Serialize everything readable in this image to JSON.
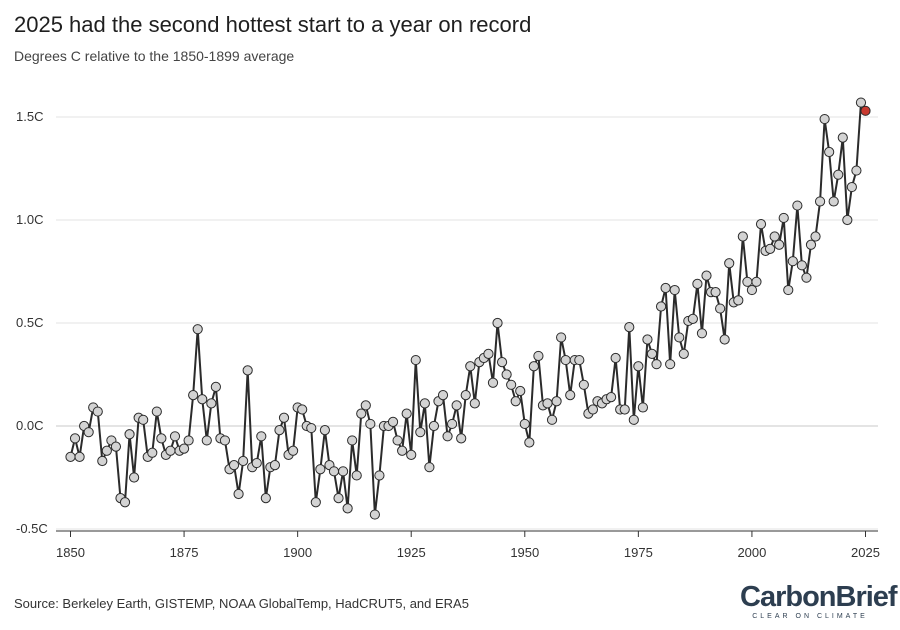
{
  "header": {
    "title": "2025 had the second hottest start to a year on record",
    "subtitle": "Degrees C relative to the 1850-1899 average"
  },
  "footer": {
    "source": "Source: Berkeley Earth, GISTEMP, NOAA GlobalTemp, HadCRUT5, and ERA5",
    "brand_name": "CarbonBrief",
    "brand_tagline": "CLEAR ON CLIMATE"
  },
  "chart_data": {
    "type": "line",
    "title": "2025 had the second hottest start to a year on record",
    "subtitle": "Degrees C relative to the 1850-1899 average",
    "xlabel": "",
    "ylabel": "",
    "xlim": [
      1850,
      2025
    ],
    "ylim": [
      -0.5,
      1.6
    ],
    "x_ticks": [
      1850,
      1875,
      1900,
      1925,
      1950,
      1975,
      2000,
      2025
    ],
    "x_tick_labels": [
      "1850",
      "1875",
      "1900",
      "1925",
      "1950",
      "1975",
      "2000",
      "2025"
    ],
    "y_ticks": [
      -0.5,
      0.0,
      0.5,
      1.0,
      1.5
    ],
    "y_tick_labels": [
      "-0.5C",
      "0.0C",
      "0.5C",
      "1.0C",
      "1.5C"
    ],
    "grid": "horizontal",
    "colors": {
      "line": "#2b2b2b",
      "marker": "#d3d3d3",
      "highlight": "#c8392f",
      "grid": "#e3e3e3"
    },
    "highlight_year": 2025,
    "x": [
      1850,
      1851,
      1852,
      1853,
      1854,
      1855,
      1856,
      1857,
      1858,
      1859,
      1860,
      1861,
      1862,
      1863,
      1864,
      1865,
      1866,
      1867,
      1868,
      1869,
      1870,
      1871,
      1872,
      1873,
      1874,
      1875,
      1876,
      1877,
      1878,
      1879,
      1880,
      1881,
      1882,
      1883,
      1884,
      1885,
      1886,
      1887,
      1888,
      1889,
      1890,
      1891,
      1892,
      1893,
      1894,
      1895,
      1896,
      1897,
      1898,
      1899,
      1900,
      1901,
      1902,
      1903,
      1904,
      1905,
      1906,
      1907,
      1908,
      1909,
      1910,
      1911,
      1912,
      1913,
      1914,
      1915,
      1916,
      1917,
      1918,
      1919,
      1920,
      1921,
      1922,
      1923,
      1924,
      1925,
      1926,
      1927,
      1928,
      1929,
      1930,
      1931,
      1932,
      1933,
      1934,
      1935,
      1936,
      1937,
      1938,
      1939,
      1940,
      1941,
      1942,
      1943,
      1944,
      1945,
      1946,
      1947,
      1948,
      1949,
      1950,
      1951,
      1952,
      1953,
      1954,
      1955,
      1956,
      1957,
      1958,
      1959,
      1960,
      1961,
      1962,
      1963,
      1964,
      1965,
      1966,
      1967,
      1968,
      1969,
      1970,
      1971,
      1972,
      1973,
      1974,
      1975,
      1976,
      1977,
      1978,
      1979,
      1980,
      1981,
      1982,
      1983,
      1984,
      1985,
      1986,
      1987,
      1988,
      1989,
      1990,
      1991,
      1992,
      1993,
      1994,
      1995,
      1996,
      1997,
      1998,
      1999,
      2000,
      2001,
      2002,
      2003,
      2004,
      2005,
      2006,
      2007,
      2008,
      2009,
      2010,
      2011,
      2012,
      2013,
      2014,
      2015,
      2016,
      2017,
      2018,
      2019,
      2020,
      2021,
      2022,
      2023,
      2024,
      2025
    ],
    "values": [
      -0.15,
      -0.06,
      -0.15,
      0.0,
      -0.03,
      0.09,
      0.07,
      -0.17,
      -0.12,
      -0.07,
      -0.1,
      -0.35,
      -0.37,
      -0.04,
      -0.25,
      0.04,
      0.03,
      -0.15,
      -0.13,
      0.07,
      -0.06,
      -0.14,
      -0.12,
      -0.05,
      -0.12,
      -0.11,
      -0.07,
      0.15,
      0.47,
      0.13,
      -0.07,
      0.11,
      0.19,
      -0.06,
      -0.07,
      -0.21,
      -0.19,
      -0.33,
      -0.17,
      0.27,
      -0.2,
      -0.18,
      -0.05,
      -0.35,
      -0.2,
      -0.19,
      -0.02,
      0.04,
      -0.14,
      -0.12,
      0.09,
      0.08,
      0.0,
      -0.01,
      -0.37,
      -0.21,
      -0.02,
      -0.19,
      -0.22,
      -0.35,
      -0.22,
      -0.4,
      -0.07,
      -0.24,
      0.06,
      0.1,
      0.01,
      -0.43,
      -0.24,
      0.0,
      0.0,
      0.02,
      -0.07,
      -0.12,
      0.06,
      -0.14,
      0.32,
      -0.03,
      0.11,
      -0.2,
      0.0,
      0.12,
      0.15,
      -0.05,
      0.01,
      0.1,
      -0.06,
      0.15,
      0.29,
      0.11,
      0.31,
      0.33,
      0.35,
      0.21,
      0.5,
      0.31,
      0.25,
      0.2,
      0.12,
      0.17,
      0.01,
      -0.08,
      0.29,
      0.34,
      0.1,
      0.11,
      0.03,
      0.12,
      0.43,
      0.32,
      0.15,
      0.32,
      0.32,
      0.2,
      0.06,
      0.08,
      0.12,
      0.11,
      0.13,
      0.14,
      0.33,
      0.08,
      0.08,
      0.48,
      0.03,
      0.29,
      0.09,
      0.42,
      0.35,
      0.3,
      0.58,
      0.67,
      0.3,
      0.66,
      0.43,
      0.35,
      0.51,
      0.52,
      0.69,
      0.45,
      0.73,
      0.65,
      0.65,
      0.57,
      0.42,
      0.79,
      0.6,
      0.61,
      0.92,
      0.7,
      0.66,
      0.7,
      0.98,
      0.85,
      0.86,
      0.92,
      0.88,
      1.01,
      0.66,
      0.8,
      1.07,
      0.78,
      0.72,
      0.88,
      0.92,
      1.09,
      1.49,
      1.33,
      1.09,
      1.22,
      1.4,
      1.0,
      1.16,
      1.24,
      1.57,
      1.53
    ]
  }
}
